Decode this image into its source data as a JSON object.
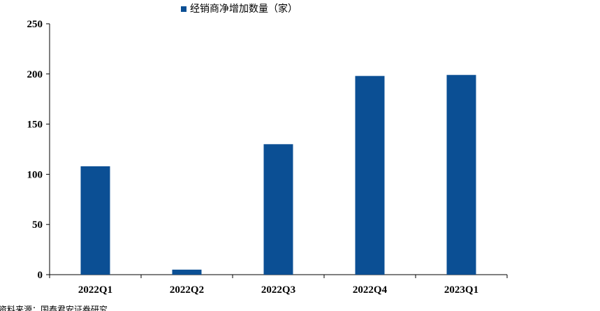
{
  "chart_data": {
    "type": "bar",
    "categories": [
      "2022Q1",
      "2022Q2",
      "2022Q3",
      "2022Q4",
      "2023Q1"
    ],
    "series": [
      {
        "name": "经销商净增加数量（家）",
        "values": [
          108,
          5,
          130,
          198,
          199
        ]
      }
    ],
    "ylim": [
      0,
      250
    ],
    "yticks": [
      0,
      50,
      100,
      150,
      200,
      250
    ],
    "legend": "top-center",
    "grid": false,
    "bar_color": "#0B4F94"
  },
  "source_note": "资料来源：国泰君安证券研究"
}
